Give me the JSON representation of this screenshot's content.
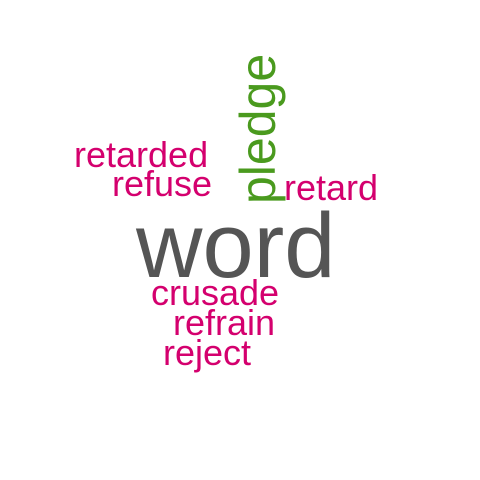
{
  "colors": {
    "primary": "#555555",
    "pink": "#d4006e",
    "green": "#4a9a1e"
  },
  "words": {
    "word": "word",
    "pledge": "pledge",
    "retarded": "retarded",
    "refuse": "refuse",
    "retard": "retard",
    "crusade": "crusade",
    "refrain": "refrain",
    "reject": "reject"
  },
  "word_colors": {
    "word": "primary",
    "pledge": "green",
    "retarded": "pink",
    "refuse": "pink",
    "retard": "pink",
    "crusade": "pink",
    "refrain": "pink",
    "reject": "pink"
  }
}
